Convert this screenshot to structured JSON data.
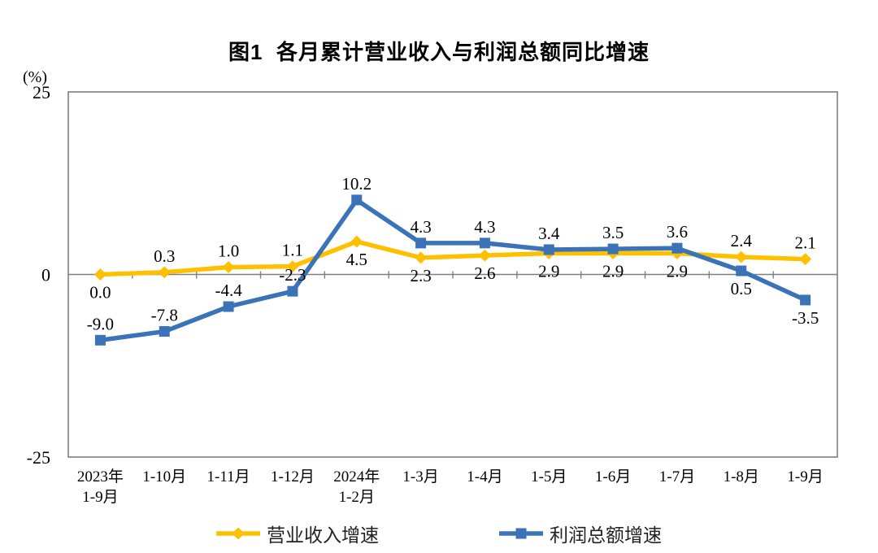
{
  "chart_data": {
    "type": "line",
    "title": "图1  各月累计营业收入与利润总额同比增速",
    "unit_label": "(%)",
    "xlabel": "",
    "ylabel": "(%)",
    "ylim": [
      -25,
      25
    ],
    "y_ticks": [
      25,
      0,
      -25
    ],
    "grid": false,
    "legend_position": "bottom",
    "categories": [
      [
        "2023年",
        "1-9月"
      ],
      [
        "1-10月"
      ],
      [
        "1-11月"
      ],
      [
        "1-12月"
      ],
      [
        "2024年",
        "1-2月"
      ],
      [
        "1-3月"
      ],
      [
        "1-4月"
      ],
      [
        "1-5月"
      ],
      [
        "1-6月"
      ],
      [
        "1-7月"
      ],
      [
        "1-8月"
      ],
      [
        "1-9月"
      ]
    ],
    "series": [
      {
        "name": "营业收入增速",
        "color": "#FFC000",
        "marker": "diamond",
        "values": [
          0.0,
          0.3,
          1.0,
          1.1,
          4.5,
          2.3,
          2.6,
          2.9,
          2.9,
          2.9,
          2.4,
          2.1
        ],
        "label_side": [
          "below",
          "above",
          "above",
          "above",
          "below",
          "below",
          "below",
          "below",
          "below",
          "below",
          "above",
          "above"
        ]
      },
      {
        "name": "利润总额增速",
        "color": "#3B73B9",
        "marker": "square",
        "values": [
          -9.0,
          -7.8,
          -4.4,
          -2.3,
          10.2,
          4.3,
          4.3,
          3.4,
          3.5,
          3.6,
          0.5,
          -3.5
        ],
        "label_side": [
          "above",
          "above",
          "above",
          "above",
          "above",
          "above",
          "above",
          "above",
          "above",
          "above",
          "below",
          "below"
        ]
      }
    ],
    "axis_color": "#7f7f7f",
    "label_color": "#000000"
  }
}
